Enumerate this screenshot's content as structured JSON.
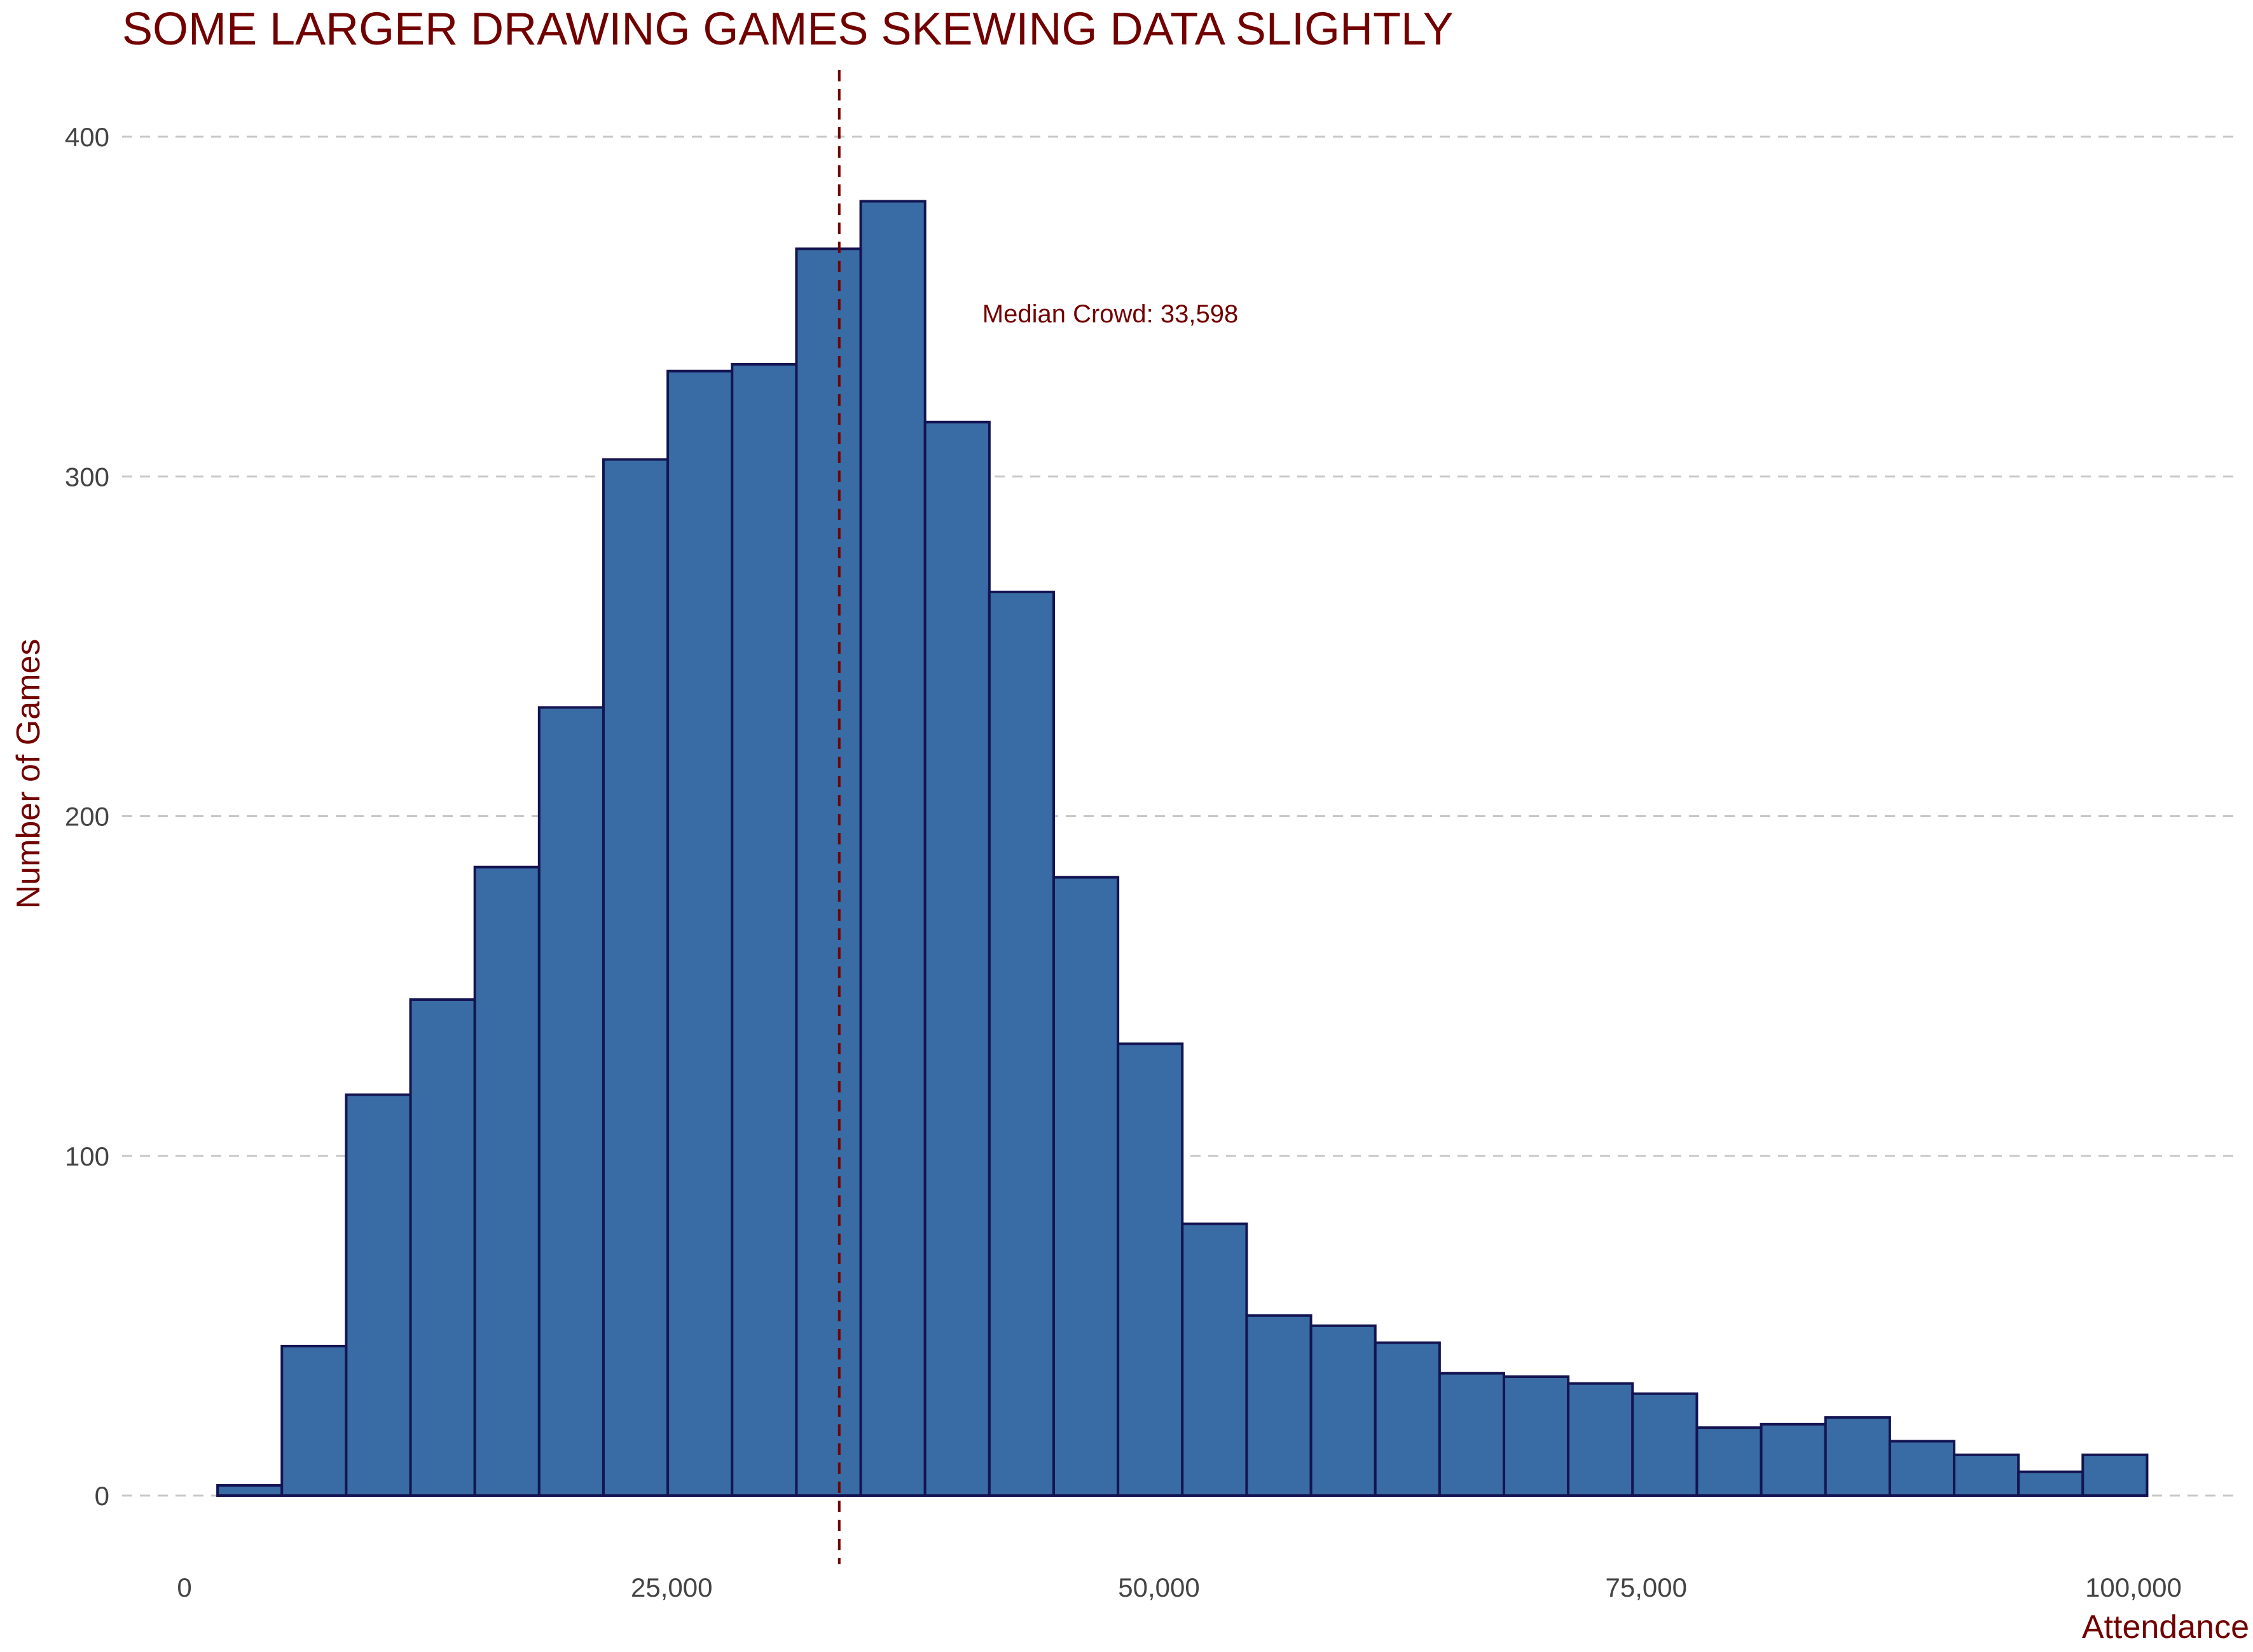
{
  "chart_data": {
    "type": "bar",
    "title": "SOME LARGER DRAWING GAMES SKEWING DATA SLIGHTLY",
    "xlabel": "Attendance",
    "ylabel": "Number of Games",
    "xlim": [
      0,
      103000
    ],
    "ylim": [
      -20,
      420
    ],
    "x_ticks": [
      {
        "value": 0,
        "label": "0"
      },
      {
        "value": 25000,
        "label": "25,000"
      },
      {
        "value": 50000,
        "label": "50,000"
      },
      {
        "value": 75000,
        "label": "75,000"
      },
      {
        "value": 100000,
        "label": "100,000"
      }
    ],
    "y_ticks": [
      {
        "value": 0,
        "label": "0"
      },
      {
        "value": 100,
        "label": "100"
      },
      {
        "value": 200,
        "label": "200"
      },
      {
        "value": 300,
        "label": "300"
      },
      {
        "value": 400,
        "label": "400"
      }
    ],
    "grid": "horizontal dashed",
    "bins": [
      {
        "x0": 1700,
        "x1": 5000,
        "count": 3
      },
      {
        "x0": 5000,
        "x1": 8300,
        "count": 44
      },
      {
        "x0": 8300,
        "x1": 11600,
        "count": 118
      },
      {
        "x0": 11600,
        "x1": 14900,
        "count": 146
      },
      {
        "x0": 14900,
        "x1": 18200,
        "count": 185
      },
      {
        "x0": 18200,
        "x1": 21500,
        "count": 232
      },
      {
        "x0": 21500,
        "x1": 24800,
        "count": 305
      },
      {
        "x0": 24800,
        "x1": 28100,
        "count": 331
      },
      {
        "x0": 28100,
        "x1": 31400,
        "count": 333
      },
      {
        "x0": 31400,
        "x1": 34700,
        "count": 367
      },
      {
        "x0": 34700,
        "x1": 38000,
        "count": 381
      },
      {
        "x0": 38000,
        "x1": 41300,
        "count": 316
      },
      {
        "x0": 41300,
        "x1": 44600,
        "count": 266
      },
      {
        "x0": 44600,
        "x1": 47900,
        "count": 182
      },
      {
        "x0": 47900,
        "x1": 51200,
        "count": 133
      },
      {
        "x0": 51200,
        "x1": 54500,
        "count": 80
      },
      {
        "x0": 54500,
        "x1": 57800,
        "count": 53
      },
      {
        "x0": 57800,
        "x1": 61100,
        "count": 50
      },
      {
        "x0": 61100,
        "x1": 64400,
        "count": 45
      },
      {
        "x0": 64400,
        "x1": 67700,
        "count": 36
      },
      {
        "x0": 67700,
        "x1": 71000,
        "count": 35
      },
      {
        "x0": 71000,
        "x1": 74300,
        "count": 33
      },
      {
        "x0": 74300,
        "x1": 77600,
        "count": 30
      },
      {
        "x0": 77600,
        "x1": 80900,
        "count": 20
      },
      {
        "x0": 80900,
        "x1": 84200,
        "count": 21
      },
      {
        "x0": 84200,
        "x1": 87500,
        "count": 23
      },
      {
        "x0": 87500,
        "x1": 90800,
        "count": 16
      },
      {
        "x0": 90800,
        "x1": 94100,
        "count": 12
      },
      {
        "x0": 94100,
        "x1": 97400,
        "count": 7
      },
      {
        "x0": 97400,
        "x1": 100700,
        "count": 12
      }
    ],
    "median": {
      "value": 33598,
      "label": "Median Crowd: 33,598",
      "label_y": 348
    },
    "colors": {
      "bar_fill": "#396ba4",
      "bar_outline": "#141452",
      "accent": "#720000"
    }
  }
}
